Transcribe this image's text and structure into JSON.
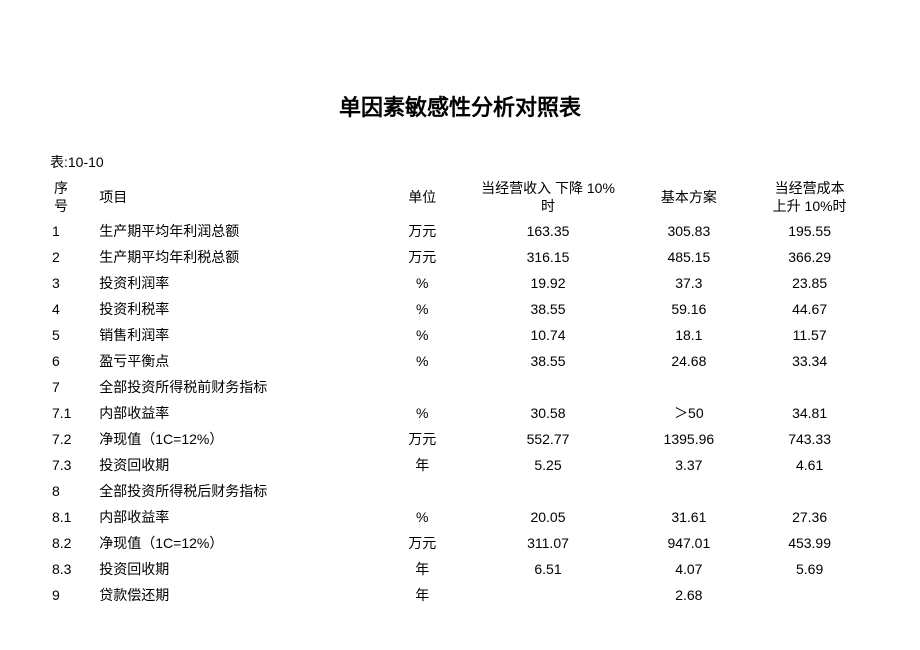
{
  "title": "单因素敏感性分析对照表",
  "table_label": "表:10-10",
  "columns": {
    "seq_line1": "序",
    "seq_line2": "号",
    "item": "项目",
    "unit": "单位",
    "v1_line1": "当经营收入 下降 10%",
    "v1_line2": "时",
    "v2": "基本方案",
    "v3_line1": "当经营成本",
    "v3_line2": "上升 10%时"
  },
  "rows": [
    {
      "seq": "1",
      "item": "生产期平均年利润总额",
      "unit": "万元",
      "v1": "163.35",
      "v2": "305.83",
      "v3": "195.55"
    },
    {
      "seq": "2",
      "item": "生产期平均年利税总额",
      "unit": "万元",
      "v1": "316.15",
      "v2": "485.15",
      "v3": "366.29"
    },
    {
      "seq": "3",
      "item": "投资利润率",
      "unit": "%",
      "v1": "19.92",
      "v2": "37.3",
      "v3": "23.85"
    },
    {
      "seq": "4",
      "item": "投资利税率",
      "unit": "%",
      "v1": "38.55",
      "v2": "59.16",
      "v3": "44.67"
    },
    {
      "seq": "5",
      "item": "销售利润率",
      "unit": "%",
      "v1": "10.74",
      "v2": "18.1",
      "v3": "11.57"
    },
    {
      "seq": "6",
      "item": "盈亏平衡点",
      "unit": "%",
      "v1": "38.55",
      "v2": "24.68",
      "v3": "33.34"
    },
    {
      "seq": "7",
      "item": "全部投资所得税前财务指标",
      "unit": "",
      "v1": "",
      "v2": "",
      "v3": ""
    },
    {
      "seq": "7.1",
      "item": "内部收益率",
      "unit": "%",
      "v1": "30.58",
      "v2": "＞50",
      "v3": "34.81"
    },
    {
      "seq": "7.2",
      "item": "净现值（1C=12%）",
      "unit": "万元",
      "v1": "552.77",
      "v2": "1395.96",
      "v3": "743.33"
    },
    {
      "seq": "7.3",
      "item": "投资回收期",
      "unit": "年",
      "v1": "5.25",
      "v2": "3.37",
      "v3": "4.61"
    },
    {
      "seq": "8",
      "item": "全部投资所得税后财务指标",
      "unit": "",
      "v1": "",
      "v2": "",
      "v3": ""
    },
    {
      "seq": "8.1",
      "item": "内部收益率",
      "unit": "%",
      "v1": "20.05",
      "v2": "31.61",
      "v3": "27.36"
    },
    {
      "seq": "8.2",
      "item": "净现值（1C=12%）",
      "unit": "万元",
      "v1": "311.07",
      "v2": "947.01",
      "v3": "453.99"
    },
    {
      "seq": "8.3",
      "item": "投资回收期",
      "unit": "年",
      "v1": "6.51",
      "v2": "4.07",
      "v3": "5.69"
    },
    {
      "seq": "9",
      "item": "贷款偿还期",
      "unit": "年",
      "v1": "",
      "v2": "2.68",
      "v3": ""
    }
  ],
  "style": {
    "background_color": "#ffffff",
    "text_color": "#000000",
    "title_fontsize": 22,
    "body_fontsize": 14,
    "font_family": "Microsoft YaHei"
  }
}
